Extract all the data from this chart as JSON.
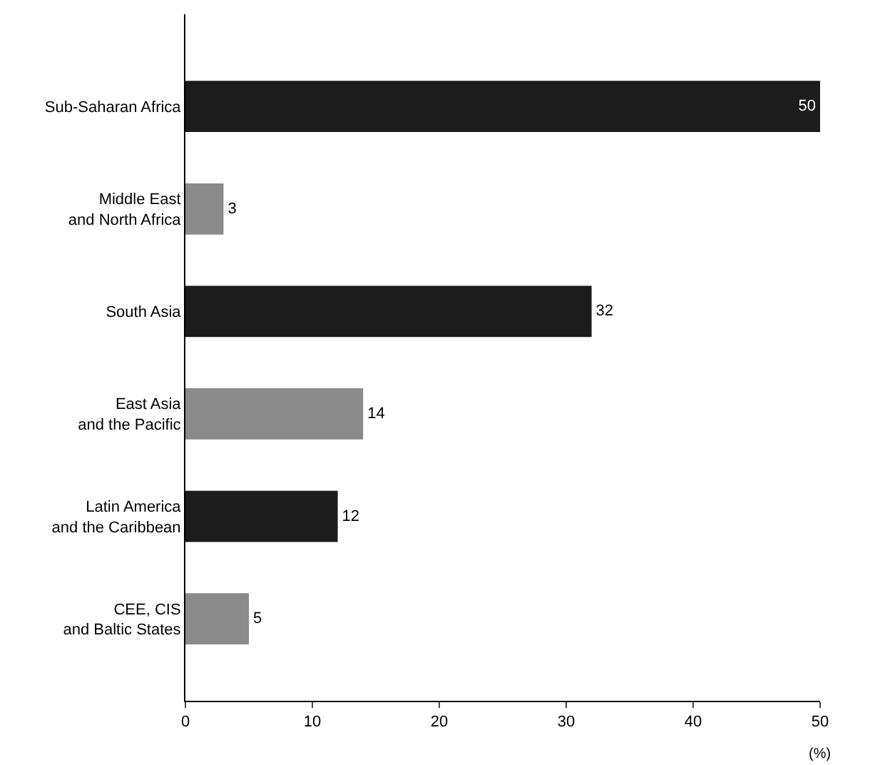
{
  "chart_data": {
    "type": "bar",
    "orientation": "horizontal",
    "categories": [
      "Sub-Saharan Africa",
      "Middle East and North Africa",
      "South Asia",
      "East Asia and the Pacific",
      "Latin America and the Caribbean",
      "CEE, CIS and Baltic States"
    ],
    "values": [
      50,
      3,
      32,
      14,
      12,
      5
    ],
    "colors": [
      "#1c1c1c",
      "#8a8a8a",
      "#1c1c1c",
      "#8a8a8a",
      "#1c1c1c",
      "#8a8a8a"
    ],
    "xlim": [
      0,
      50
    ],
    "xticks": [
      0,
      10,
      20,
      30,
      40,
      50
    ],
    "xlabel": "(%)",
    "data_labels": true
  }
}
